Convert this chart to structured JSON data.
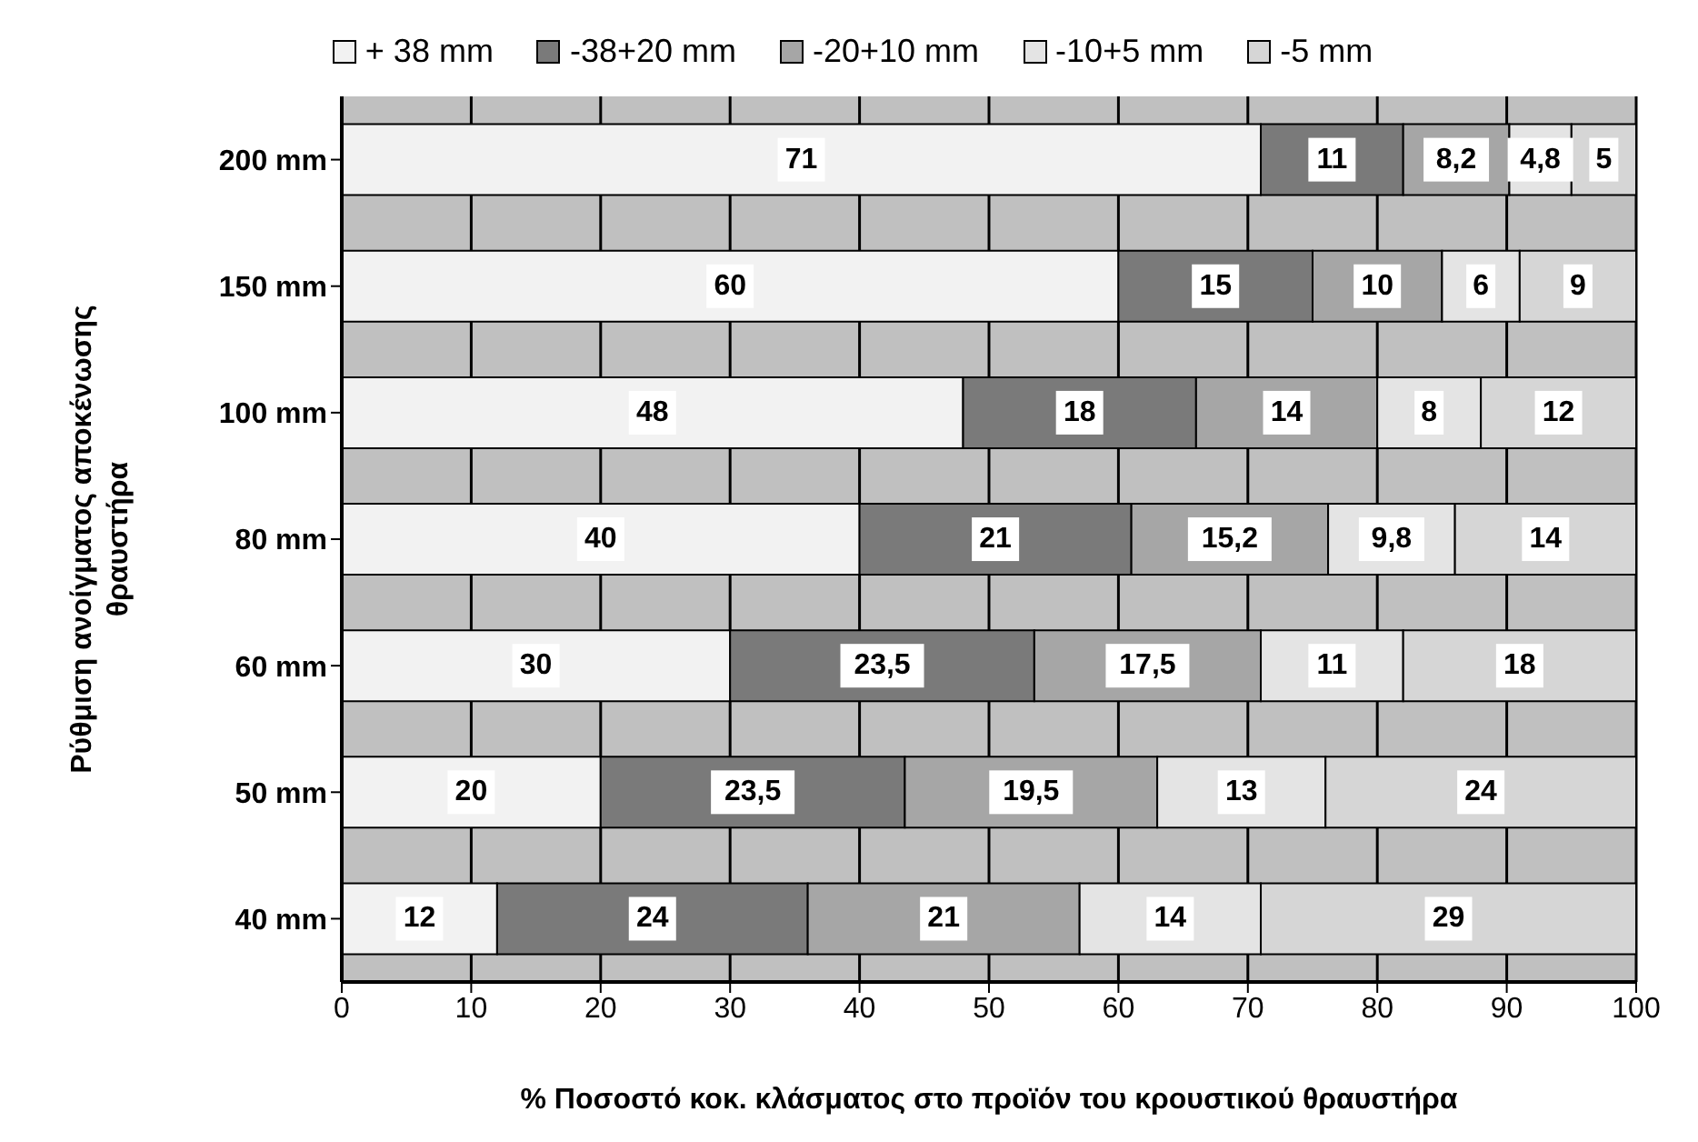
{
  "chart_data": {
    "type": "bar",
    "orientation": "horizontal",
    "stacked": true,
    "xlabel": "%  Ποσοστό κοκ. κλάσματος στο προϊόν του κρουστικού θραυστήρα",
    "ylabel": "Ρύθμιση ανοίγματος αποκένωσης\nθραυστήρα",
    "categories": [
      "200  mm",
      "150  mm",
      "100  mm",
      "80  mm",
      "60  mm",
      "50  mm",
      "40  mm"
    ],
    "series": [
      {
        "name": "+ 38 mm",
        "color": "#f2f2f2",
        "values": [
          71,
          60,
          48,
          40,
          30,
          20,
          12
        ],
        "value_labels": [
          "71",
          "60",
          "48",
          "40",
          "30",
          "20",
          "12"
        ]
      },
      {
        "name": "-38+20 mm",
        "color": "#7a7a7a",
        "values": [
          11,
          15,
          18,
          21,
          23.5,
          23.5,
          24
        ],
        "value_labels": [
          "11",
          "15",
          "18",
          "21",
          "23,5",
          "23,5",
          "24"
        ]
      },
      {
        "name": "-20+10 mm",
        "color": "#a6a6a6",
        "values": [
          8.2,
          10,
          14,
          15.2,
          17.5,
          19.5,
          21
        ],
        "value_labels": [
          "8,2",
          "10",
          "14",
          "15,2",
          "17,5",
          "19,5",
          "21"
        ]
      },
      {
        "name": "-10+5 mm",
        "color": "#e4e4e4",
        "values": [
          4.8,
          6,
          8,
          9.8,
          11,
          13,
          14
        ],
        "value_labels": [
          "4,8",
          "6",
          "8",
          "9,8",
          "11",
          "13",
          "14"
        ]
      },
      {
        "name": "-5 mm",
        "color": "#d6d6d6",
        "values": [
          5,
          9,
          12,
          14,
          18,
          24,
          29
        ],
        "value_labels": [
          "5",
          "9",
          "12",
          "14",
          "18",
          "24",
          "29"
        ]
      }
    ],
    "xlim": [
      0,
      100
    ],
    "xticks": [
      0,
      10,
      20,
      30,
      40,
      50,
      60,
      70,
      80,
      90,
      100
    ],
    "grid": "x",
    "legend": "top"
  }
}
